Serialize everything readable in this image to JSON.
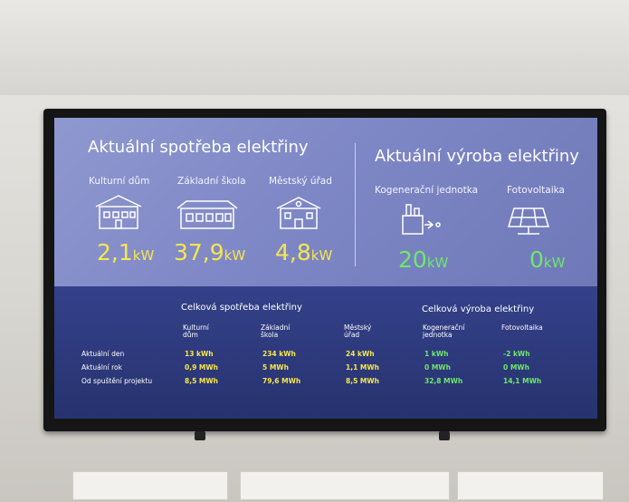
{
  "consumption": {
    "title": "Aktuální spotřeba elektřiny",
    "items": [
      {
        "label": "Kulturní dům",
        "value": "2,1",
        "unit": "kW"
      },
      {
        "label": "Základní škola",
        "value": "37,9",
        "unit": "kW"
      },
      {
        "label": "Městský úřad",
        "value": "4,8",
        "unit": "kW"
      }
    ]
  },
  "production": {
    "title": "Aktuální výroba elektřiny",
    "items": [
      {
        "label": "Kogenerační jednotka",
        "value": "20",
        "unit": "kW"
      },
      {
        "label": "Fotovoltaika",
        "value": "0",
        "unit": "kW"
      }
    ]
  },
  "table": {
    "consumption_title": "Celková spotřeba elektřiny",
    "production_title": "Celková výroba elektřiny",
    "columns": [
      "Kulturní dům",
      "Základní škola",
      "Městský úřad",
      "Kogenerační jednotka",
      "Fotovoltaika"
    ],
    "rows": [
      [
        "Aktuální den",
        "13 kWh",
        "234 kWh",
        "24 kWh",
        "1 kWh",
        "-2 kWh"
      ],
      [
        "Aktuální rok",
        "0,9 MWh",
        "5 MWh",
        "1,1 MWh",
        "0 MWh",
        "0 MWh"
      ],
      [
        "Od spuštění projektu",
        "8,5 MWh",
        "79,6 MWh",
        "8,5 MWh",
        "32,8 MWh",
        "14,1 MWh"
      ]
    ]
  }
}
